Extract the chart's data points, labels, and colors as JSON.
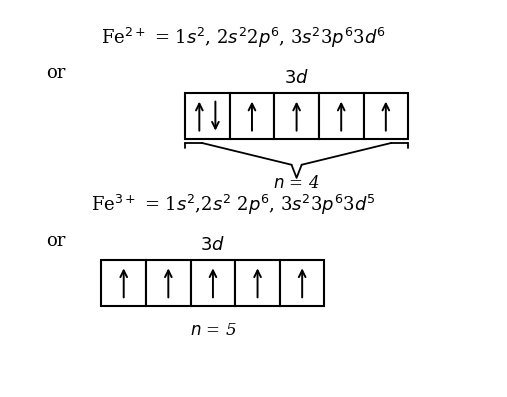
{
  "bg_color": "#ffffff",
  "fig_width": 5.07,
  "fig_height": 3.97,
  "dpi": 100
}
